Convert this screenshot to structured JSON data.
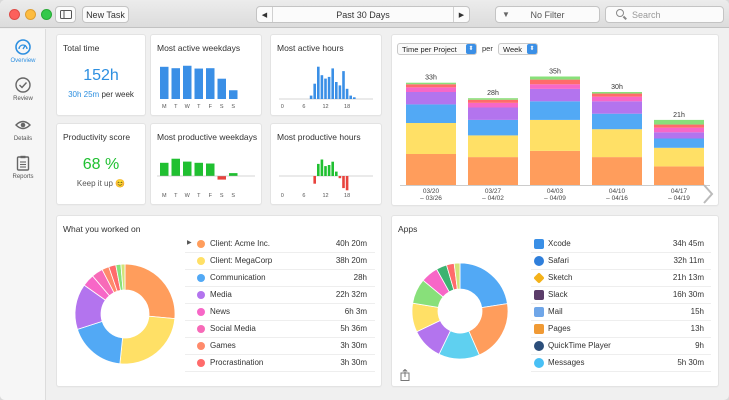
{
  "toolbar": {
    "new_task_label": "New Task",
    "period_label": "Past 30 Days",
    "filter_label": "No Filter",
    "search_placeholder": "Search"
  },
  "nav": {
    "items": [
      {
        "label": "Overview",
        "icon": "gauge-icon"
      },
      {
        "label": "Review",
        "icon": "check-circle-icon"
      },
      {
        "label": "Details",
        "icon": "eye-icon"
      },
      {
        "label": "Reports",
        "icon": "clipboard-icon"
      }
    ]
  },
  "colors": {
    "accent": "#2d8fe0",
    "green": "#20c031",
    "red": "#e8433d",
    "bar_blue": "#3a8fe6"
  },
  "total_time": {
    "title": "Total time",
    "value": "152h",
    "per_week_value": "30h 25m",
    "per_week_suffix": "per week"
  },
  "productivity": {
    "title": "Productivity score",
    "value": "68 %",
    "message": "Keep it up 😊"
  },
  "weekdays_active": {
    "title": "Most active weekdays",
    "days": [
      "M",
      "T",
      "W",
      "T",
      "F",
      "S",
      "S"
    ],
    "values": [
      0.92,
      0.88,
      0.95,
      0.87,
      0.88,
      0.58,
      0.25
    ]
  },
  "weekdays_productive": {
    "title": "Most productive weekdays",
    "days": [
      "M",
      "T",
      "W",
      "T",
      "F",
      "S",
      "S"
    ],
    "values": [
      0.55,
      0.72,
      0.6,
      0.55,
      0.52,
      -0.15,
      0.12
    ]
  },
  "hours_active": {
    "title": "Most active hours",
    "ticks": [
      "0",
      "6",
      "12",
      "18"
    ],
    "values": [
      0,
      0,
      0,
      0,
      0,
      0,
      0,
      0,
      0.1,
      0.45,
      0.95,
      0.7,
      0.6,
      0.65,
      0.9,
      0.5,
      0.4,
      0.82,
      0.3,
      0.1,
      0.05,
      0,
      0,
      0
    ]
  },
  "hours_productive": {
    "title": "Most productive hours",
    "ticks": [
      "0",
      "6",
      "12",
      "18"
    ],
    "values": [
      0,
      0,
      0,
      0,
      0,
      0,
      0,
      0,
      0,
      -0.35,
      0.55,
      0.75,
      0.45,
      0.5,
      0.65,
      0.2,
      -0.1,
      -0.55,
      -0.65,
      0,
      0,
      0,
      0,
      0
    ]
  },
  "time_per_project": {
    "selector": "Time per Project",
    "per_label": "per",
    "granularity": "Week",
    "weeks": [
      {
        "total": "33h",
        "label_top": "03/20",
        "label_bottom": "– 03/26"
      },
      {
        "total": "28h",
        "label_top": "03/27",
        "label_bottom": "– 04/02"
      },
      {
        "total": "35h",
        "label_top": "04/03",
        "label_bottom": "– 04/09"
      },
      {
        "total": "30h",
        "label_top": "04/10",
        "label_bottom": "– 04/16"
      },
      {
        "total": "21h",
        "label_top": "04/17",
        "label_bottom": "– 04/19"
      }
    ],
    "chart_data": {
      "type": "bar",
      "stacked": true,
      "categories": [
        "03/20 – 03/26",
        "03/27 – 04/02",
        "04/03 – 04/09",
        "04/10 – 04/16",
        "04/17 – 04/19"
      ],
      "totals": [
        33,
        28,
        35,
        30,
        21
      ],
      "series": [
        {
          "color": "#ff9d5c",
          "values": [
            10,
            9,
            11,
            9,
            6
          ]
        },
        {
          "color": "#ffe066",
          "values": [
            10,
            7,
            10,
            9,
            6
          ]
        },
        {
          "color": "#52a9f5",
          "values": [
            6,
            5,
            6,
            5,
            3
          ]
        },
        {
          "color": "#b374ee",
          "values": [
            4,
            4,
            4,
            4,
            2
          ]
        },
        {
          "color": "#f767c7",
          "values": [
            1.5,
            1.5,
            1.5,
            1.5,
            1.5
          ]
        },
        {
          "color": "#ff6b6b",
          "values": [
            1,
            1,
            1.5,
            1,
            1
          ]
        },
        {
          "color": "#88e07a",
          "values": [
            0.5,
            0.5,
            1,
            0.5,
            1.5
          ]
        }
      ]
    }
  },
  "worked_on": {
    "title": "What you worked on",
    "items": [
      {
        "name": "Client: Acme Inc.",
        "duration": "40h 20m",
        "color": "#ff9d5c",
        "expandable": true
      },
      {
        "name": "Client: MegaCorp",
        "duration": "38h 20m",
        "color": "#ffe066",
        "expandable": false
      },
      {
        "name": "Communication",
        "duration": "28h",
        "color": "#52a9f5",
        "expandable": false
      },
      {
        "name": "Media",
        "duration": "22h 32m",
        "color": "#b374ee",
        "expandable": false
      },
      {
        "name": "News",
        "duration": "6h 3m",
        "color": "#f767c7",
        "expandable": false
      },
      {
        "name": "Social Media",
        "duration": "5h 36m",
        "color": "#f76ab8",
        "expandable": false
      },
      {
        "name": "Games",
        "duration": "3h 30m",
        "color": "#ff8a6b",
        "expandable": false
      },
      {
        "name": "Procrastination",
        "duration": "3h 30m",
        "color": "#ff6b6b",
        "expandable": false
      }
    ],
    "chart_data": {
      "type": "pie",
      "donut": true,
      "values": [
        40.33,
        38.33,
        28,
        22.53,
        6.05,
        5.6,
        3.5,
        3.5,
        2.5,
        2
      ],
      "colors": [
        "#ff9d5c",
        "#ffe066",
        "#52a9f5",
        "#b374ee",
        "#f767c7",
        "#f76ab8",
        "#ff8a6b",
        "#ff6b6b",
        "#88e07a",
        "#d3e37a"
      ]
    }
  },
  "apps": {
    "title": "Apps",
    "items": [
      {
        "name": "Xcode",
        "duration": "34h 45m",
        "icon": "xcode-icon",
        "color": "#3a8fe6"
      },
      {
        "name": "Safari",
        "duration": "32h 11m",
        "icon": "safari-icon",
        "color": "#2f7fdb"
      },
      {
        "name": "Sketch",
        "duration": "21h 13m",
        "icon": "sketch-icon",
        "color": "#f4b21a"
      },
      {
        "name": "Slack",
        "duration": "16h 30m",
        "icon": "slack-icon",
        "color": "#5b3c69"
      },
      {
        "name": "Mail",
        "duration": "15h",
        "icon": "mail-icon",
        "color": "#6fa6e8"
      },
      {
        "name": "Pages",
        "duration": "13h",
        "icon": "pages-icon",
        "color": "#f09a35"
      },
      {
        "name": "QuickTime Player",
        "duration": "9h",
        "icon": "quicktime-icon",
        "color": "#2b4e7a"
      },
      {
        "name": "Messages",
        "duration": "5h 30m",
        "icon": "messages-icon",
        "color": "#48c0f5"
      }
    ],
    "chart_data": {
      "type": "pie",
      "donut": true,
      "values": [
        34.75,
        32.18,
        21.22,
        16.5,
        15,
        13,
        9,
        5.5,
        4,
        3
      ],
      "colors": [
        "#52a9f5",
        "#ff9d5c",
        "#5fd0f0",
        "#b374ee",
        "#ffe066",
        "#88e07a",
        "#f767c7",
        "#3cb371",
        "#ff6b6b",
        "#d3e37a"
      ]
    }
  }
}
